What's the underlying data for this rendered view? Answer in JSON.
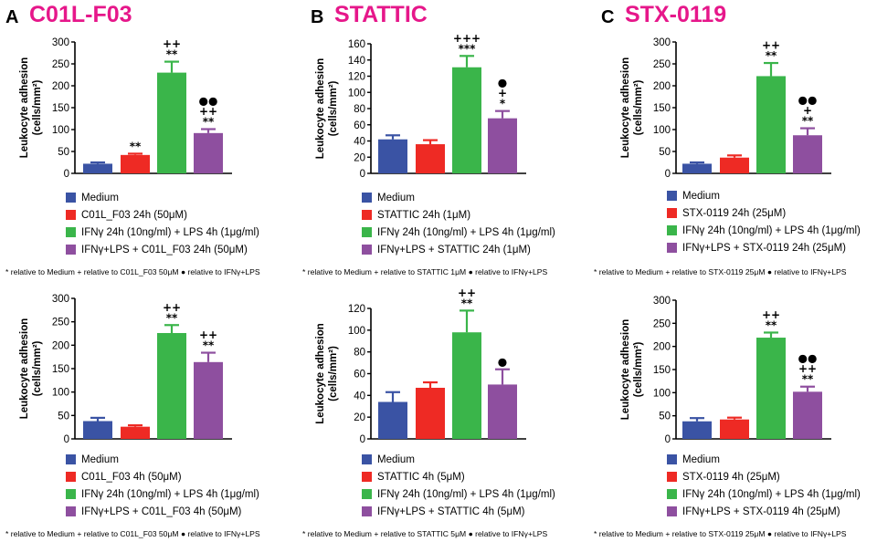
{
  "panels": [
    {
      "letter": "A",
      "title": "C01L-F03"
    },
    {
      "letter": "B",
      "title": "STATTIC"
    },
    {
      "letter": "C",
      "title": "STX-0119"
    }
  ],
  "colors": {
    "medium": "#3a53a4",
    "compound": "#ee2a24",
    "ifn_lps": "#3ab54a",
    "combo": "#8e4f9f",
    "title": "#e6178a"
  },
  "chart_data": [
    {
      "id": "A-top",
      "type": "bar",
      "title": "C01L-F03",
      "ylabel": "Leukocyte adhesion",
      "yunit": "(cells/mm²)",
      "ylim": [
        0,
        300
      ],
      "yticks": [
        "0",
        "50",
        "100",
        "150",
        "200",
        "250",
        "300"
      ],
      "ytick_values": [
        0,
        50,
        100,
        150,
        200,
        250,
        300
      ],
      "categories": [
        "Medium",
        "C01L_F03 24h (50μM)",
        "IFNγ 24h (10ng/ml) + LPS 4h (1μg/ml)",
        "IFNγ+LPS + C01L_F03 24h (50μM)"
      ],
      "values": [
        22,
        42,
        230,
        92
      ],
      "errors": [
        3,
        3,
        25,
        9
      ],
      "annotations": [
        [],
        [
          "**"
        ],
        [
          "++",
          "**"
        ],
        [
          "●●",
          "++",
          "**"
        ]
      ],
      "footnote": "* relative to Medium   + relative to C01L_F03 50μM   ● relative to IFNγ+LPS"
    },
    {
      "id": "B-top",
      "type": "bar",
      "title": "STATTIC",
      "ylabel": "Leukocyte adhesion",
      "yunit": "(cells/mm²)",
      "ylim": [
        0,
        160
      ],
      "yticks": [
        "0",
        "20",
        "40",
        "60",
        "80",
        "100",
        "120",
        "140",
        "160"
      ],
      "ytick_values": [
        0,
        20,
        40,
        60,
        80,
        100,
        120,
        140,
        160
      ],
      "categories": [
        "Medium",
        "STATTIC 24h (1μM)",
        "IFNγ 24h (10ng/ml) + LPS 4h (1μg/ml)",
        "IFNγ+LPS + STATTIC 24h (1μM)"
      ],
      "values": [
        42,
        36,
        131,
        68
      ],
      "errors": [
        5,
        5,
        14,
        9
      ],
      "annotations": [
        [],
        [],
        [
          "+++",
          "***"
        ],
        [
          "●",
          "+",
          "*"
        ]
      ],
      "footnote": "* relative to Medium   + relative to STATTIC 1μM   ● relative to IFNγ+LPS"
    },
    {
      "id": "C-top",
      "type": "bar",
      "title": "STX-0119",
      "ylabel": "Leukocyte adhesion",
      "yunit": "(cells/mm²)",
      "ylim": [
        0,
        300
      ],
      "yticks": [
        "0",
        "50",
        "100",
        "150",
        "200",
        "250",
        "300"
      ],
      "ytick_values": [
        0,
        50,
        100,
        150,
        200,
        250,
        300
      ],
      "categories": [
        "Medium",
        "STX-0119 24h (25μM)",
        "IFNγ 24h (10ng/ml) + LPS 4h (1μg/ml)",
        "IFNγ+LPS + STX-0119 24h (25μM)"
      ],
      "values": [
        22,
        36,
        222,
        87
      ],
      "errors": [
        3,
        5,
        30,
        16
      ],
      "annotations": [
        [],
        [],
        [
          "++",
          "**"
        ],
        [
          "●●",
          "+",
          "**"
        ]
      ],
      "footnote": "* relative to Medium   + relative to STX-0119 25μM   ● relative to IFNγ+LPS"
    },
    {
      "id": "A-bottom",
      "type": "bar",
      "title": "C01L-F03",
      "ylabel": "Leukocyte adhesion",
      "yunit": "(cells/mm²)",
      "ylim": [
        0,
        300
      ],
      "yticks": [
        "0",
        "50",
        "100",
        "150",
        "200",
        "250",
        "300"
      ],
      "ytick_values": [
        0,
        50,
        100,
        150,
        200,
        250,
        300
      ],
      "categories": [
        "Medium",
        "C01L_F03 4h (50μM)",
        "IFNγ 24h (10ng/ml) + LPS 4h (1μg/ml)",
        "IFNγ+LPS + C01L_F03 4h (50μM)"
      ],
      "values": [
        38,
        26,
        226,
        164
      ],
      "errors": [
        7,
        3,
        17,
        20
      ],
      "annotations": [
        [],
        [],
        [
          "++",
          "**"
        ],
        [
          "++",
          "**"
        ]
      ],
      "footnote": "* relative to Medium   + relative to C01L_F03 50μM   ● relative to IFNγ+LPS"
    },
    {
      "id": "B-bottom",
      "type": "bar",
      "title": "STATTIC",
      "ylabel": "Leukocyte adhesion",
      "yunit": "(cells/mm²)",
      "ylim": [
        0,
        120
      ],
      "yticks": [
        "0",
        "20",
        "40",
        "60",
        "80",
        "100",
        "120"
      ],
      "ytick_values": [
        0,
        20,
        40,
        60,
        80,
        100,
        120
      ],
      "categories": [
        "Medium",
        "STATTIC 4h (5μM)",
        "IFNγ 24h (10ng/ml) + LPS 4h (1μg/ml)",
        "IFNγ+LPS + STATTIC 4h (5μM)"
      ],
      "values": [
        34,
        47,
        98,
        50
      ],
      "errors": [
        9,
        5,
        20,
        14
      ],
      "annotations": [
        [],
        [],
        [
          "++",
          "**"
        ],
        [
          "●"
        ]
      ],
      "footnote": "* relative to Medium   + relative to STATTIC 5μM   ● relative to IFNγ+LPS"
    },
    {
      "id": "C-bottom",
      "type": "bar",
      "title": "STX-0119",
      "ylabel": "Leukocyte adhesion",
      "yunit": "(cells/mm²)",
      "ylim": [
        0,
        300
      ],
      "yticks": [
        "0",
        "50",
        "100",
        "150",
        "200",
        "250",
        "300"
      ],
      "ytick_values": [
        0,
        50,
        100,
        150,
        200,
        250,
        300
      ],
      "categories": [
        "Medium",
        "STX-0119 4h (25μM)",
        "IFNγ 24h (10ng/ml) + LPS 4h (1μg/ml)",
        "IFNγ+LPS + STX-0119 4h (25μM)"
      ],
      "values": [
        38,
        42,
        219,
        102
      ],
      "errors": [
        7,
        4,
        11,
        11
      ],
      "annotations": [
        [],
        [],
        [
          "++",
          "**"
        ],
        [
          "●●",
          "++",
          "**"
        ]
      ],
      "footnote": "* relative to Medium   + relative to STX-0119 25μM   ● relative to IFNγ+LPS"
    }
  ]
}
